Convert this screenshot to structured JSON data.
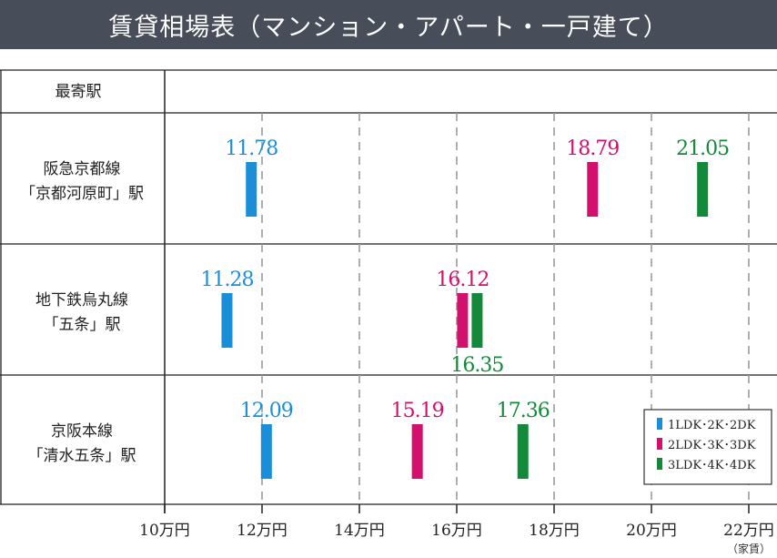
{
  "chart_data": {
    "type": "bar",
    "title": "賃貸相場表（マンション・アパート・一戸建て）",
    "header_label": "最寄駅",
    "x_unit_label": "（家賃）",
    "xlim": [
      10,
      22
    ],
    "x_ticks": [
      10,
      12,
      14,
      16,
      18,
      20,
      22
    ],
    "x_tick_labels": [
      "10万円",
      "12万円",
      "14万円",
      "16万円",
      "18万円",
      "20万円",
      "22万円"
    ],
    "grid": "vertical-dashed",
    "legend_position": "bottom-right",
    "stations": [
      {
        "line1": "阪急京都線",
        "line2": "「京都河原町」駅"
      },
      {
        "line1": "地下鉄烏丸線",
        "line2": "「五条」駅"
      },
      {
        "line1": "京阪本線",
        "line2": "「清水五条」駅"
      }
    ],
    "series": [
      {
        "name": "1LDK･2K･2DK",
        "color": "#1a8fd8",
        "values": [
          11.78,
          11.28,
          12.09
        ]
      },
      {
        "name": "2LDK･3K･3DK",
        "color": "#d4106e",
        "values": [
          18.79,
          16.12,
          15.19
        ]
      },
      {
        "name": "3LDK･4K･4DK",
        "color": "#13893a",
        "values": [
          21.05,
          16.35,
          17.36
        ]
      }
    ]
  }
}
